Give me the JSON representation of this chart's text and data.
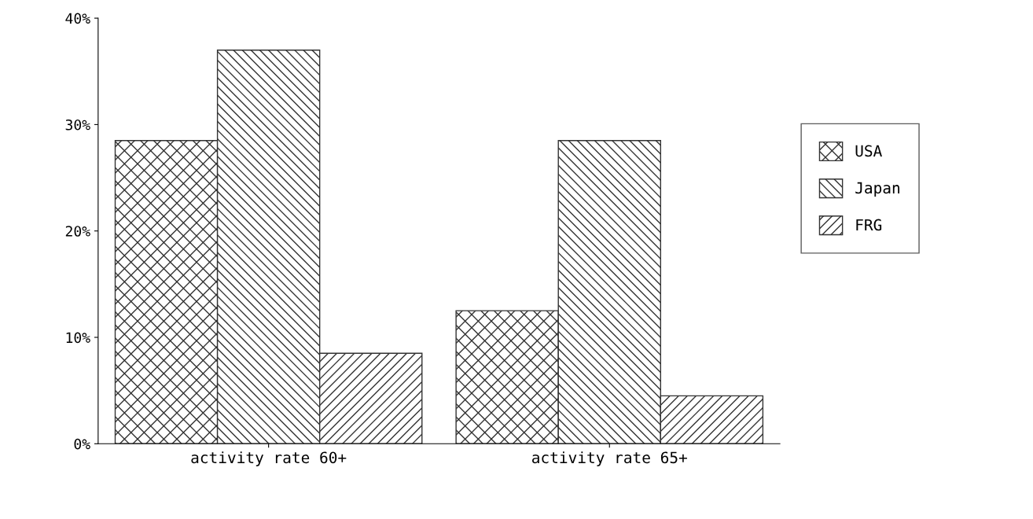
{
  "chart_data": {
    "type": "bar",
    "categories": [
      "activity rate 60+",
      "activity rate 65+"
    ],
    "series": [
      {
        "name": "USA",
        "color": "#333333",
        "values": [
          28.5,
          12.5
        ]
      },
      {
        "name": "Japan",
        "color": "#333333",
        "values": [
          37,
          28.5
        ]
      },
      {
        "name": "FRG",
        "color": "#333333",
        "values": [
          8.5,
          4.5
        ]
      }
    ],
    "ylim": [
      0,
      40
    ],
    "yticks": [
      {
        "value": 0,
        "label": "0%"
      },
      {
        "value": 10,
        "label": "10%"
      },
      {
        "value": 20,
        "label": "20%"
      },
      {
        "value": 30,
        "label": "30%"
      },
      {
        "value": 40,
        "label": "40%"
      }
    ],
    "grid": false,
    "legend": "right"
  }
}
